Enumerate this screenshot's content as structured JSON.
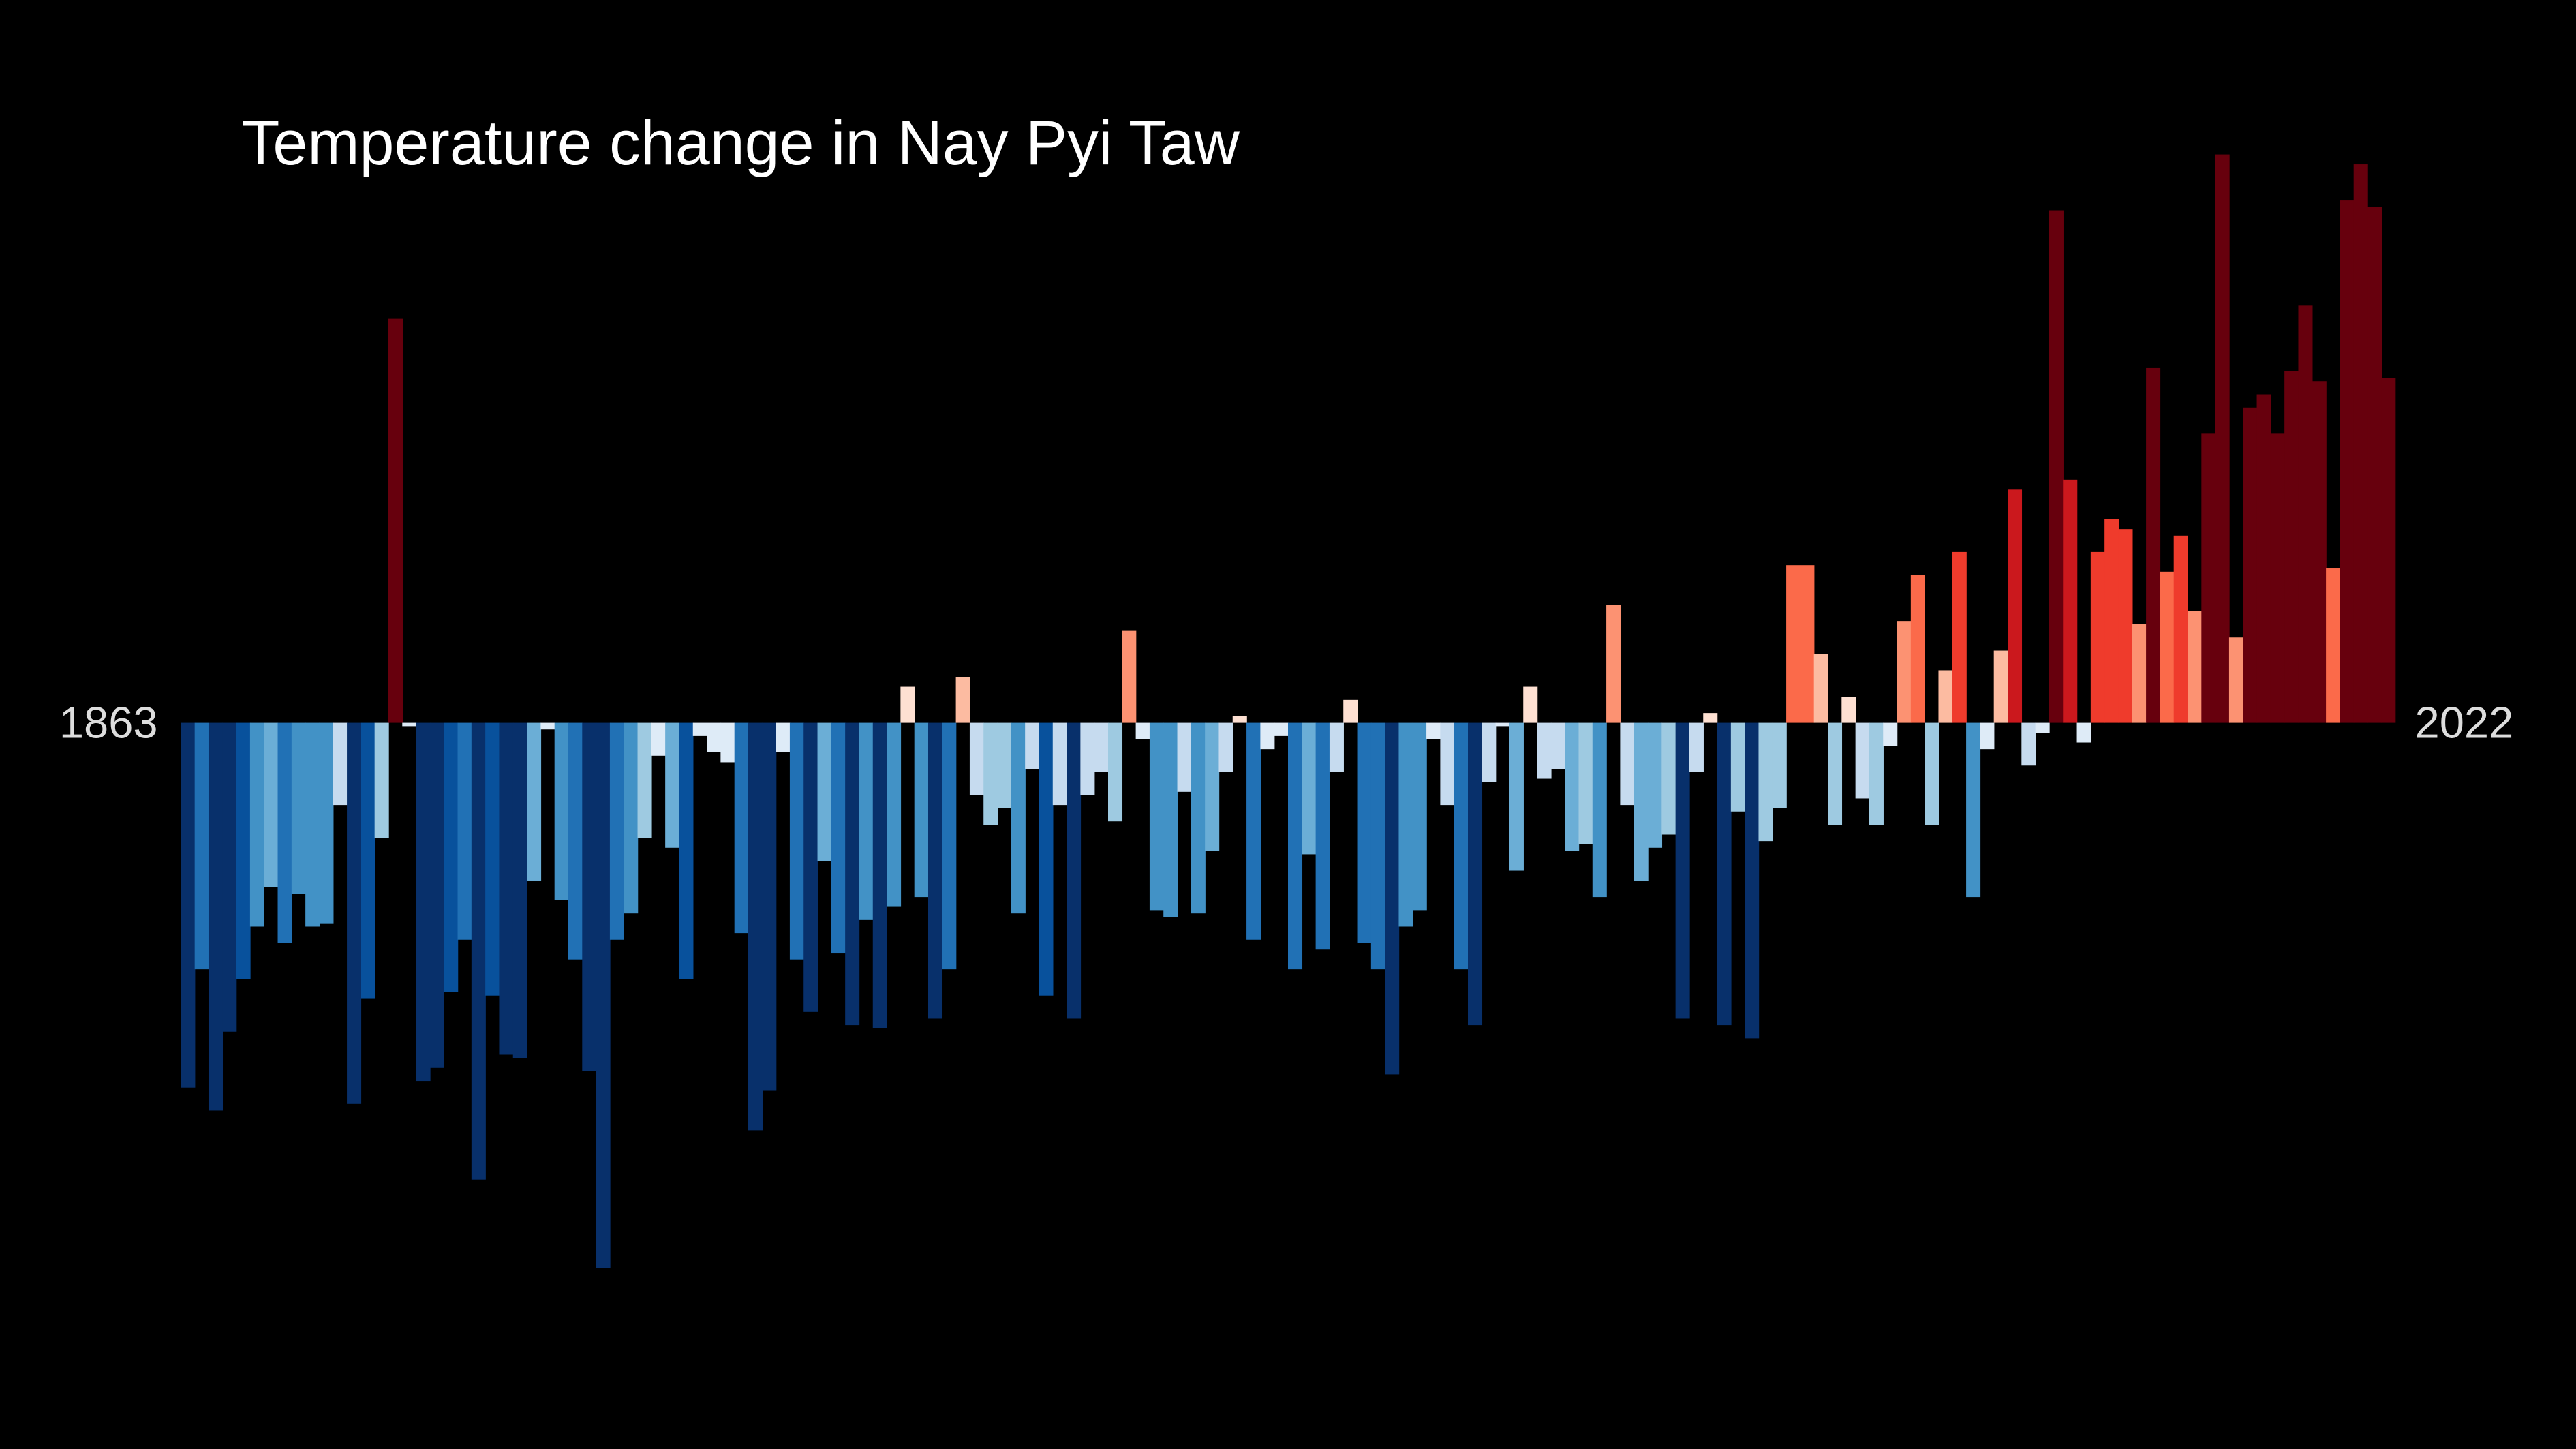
{
  "chart_data": {
    "type": "bar",
    "title": "Temperature change in Nay Pyi Taw",
    "categories": [
      "1863",
      null,
      null,
      null,
      null,
      null,
      null,
      null,
      null,
      null,
      null,
      null,
      null,
      null,
      null,
      null,
      null,
      null,
      null,
      null,
      null,
      null,
      null,
      null,
      null,
      null,
      null,
      null,
      null,
      null,
      null,
      null,
      null,
      null,
      null,
      null,
      null,
      null,
      null,
      null,
      null,
      null,
      null,
      null,
      null,
      null,
      null,
      null,
      null,
      null,
      null,
      null,
      null,
      null,
      null,
      null,
      null,
      null,
      null,
      null,
      null,
      null,
      null,
      null,
      null,
      null,
      null,
      null,
      null,
      null,
      null,
      null,
      null,
      null,
      null,
      null,
      null,
      null,
      null,
      null,
      null,
      null,
      null,
      null,
      null,
      null,
      null,
      null,
      null,
      null,
      null,
      null,
      null,
      null,
      null,
      null,
      null,
      null,
      null,
      null,
      null,
      null,
      null,
      null,
      null,
      null,
      null,
      null,
      null,
      null,
      null,
      null,
      null,
      null,
      null,
      null,
      null,
      null,
      null,
      null,
      null,
      null,
      null,
      null,
      null,
      null,
      null,
      null,
      null,
      null,
      null,
      null,
      null,
      null,
      null,
      null,
      null,
      null,
      null,
      null,
      null,
      null,
      null,
      null,
      null,
      null,
      null,
      null,
      null,
      null,
      null,
      null,
      null,
      null,
      null,
      null,
      null,
      null,
      null,
      "2022"
    ],
    "values": [
      -1.11,
      -0.75,
      -1.18,
      -0.94,
      -0.78,
      -0.62,
      -0.5,
      -0.67,
      -0.52,
      -0.62,
      -0.61,
      -0.25,
      -1.16,
      -0.84,
      -0.35,
      1.23,
      -0.01,
      -1.09,
      -1.05,
      -0.82,
      -0.66,
      -1.39,
      -0.83,
      -1.01,
      -1.02,
      -0.48,
      -0.02,
      -0.54,
      -0.72,
      -1.06,
      -1.66,
      -0.66,
      -0.58,
      -0.35,
      -0.1,
      -0.38,
      -0.78,
      -0.04,
      -0.09,
      -0.12,
      -0.64,
      -1.24,
      -1.12,
      -0.09,
      -0.72,
      -0.88,
      -0.42,
      -0.7,
      -0.92,
      -0.6,
      -0.93,
      -0.56,
      0.11,
      -0.53,
      -0.9,
      -0.75,
      0.14,
      -0.22,
      -0.31,
      -0.26,
      -0.58,
      -0.14,
      -0.83,
      -0.25,
      -0.9,
      -0.22,
      -0.15,
      -0.3,
      0.28,
      -0.05,
      -0.57,
      -0.59,
      -0.21,
      -0.58,
      -0.39,
      -0.15,
      0.02,
      -0.66,
      -0.08,
      -0.04,
      -0.75,
      -0.4,
      -0.69,
      -0.15,
      0.07,
      -0.67,
      -0.75,
      -1.07,
      -0.62,
      -0.57,
      -0.05,
      -0.25,
      -0.75,
      -0.92,
      -0.18,
      -0.01,
      -0.45,
      0.11,
      -0.17,
      -0.14,
      -0.39,
      -0.37,
      -0.53,
      0.36,
      -0.25,
      -0.48,
      -0.38,
      -0.34,
      -0.9,
      -0.15,
      0.03,
      -0.92,
      -0.27,
      -0.96,
      -0.36,
      -0.26,
      0.48,
      0.48,
      0.21,
      -0.31,
      0.08,
      -0.23,
      -0.31,
      -0.07,
      0.31,
      0.45,
      -0.31,
      0.16,
      0.52,
      -0.53,
      -0.08,
      0.22,
      0.71,
      -0.13,
      -0.03,
      1.56,
      0.74,
      -0.06,
      0.52,
      0.62,
      0.59,
      0.3,
      1.08,
      0.46,
      0.57,
      0.34,
      0.88,
      1.73,
      0.26,
      0.96,
      1.0,
      0.88,
      1.07,
      1.27,
      1.04,
      0.47,
      1.59,
      1.7,
      1.57,
      1.05
    ],
    "ylim": [
      -2.2,
      2.2
    ],
    "color_scale": {
      "domain": [
        -1.0,
        1.0
      ],
      "colors": [
        "#08306b",
        "#08519c",
        "#2171b5",
        "#4292c6",
        "#6baed6",
        "#9ecae1",
        "#c6dbef",
        "#deebf7",
        "#fee0d2",
        "#fcbba1",
        "#fc9272",
        "#fb6a4a",
        "#ef3b2c",
        "#cb181d",
        "#a50f15",
        "#67000d"
      ]
    },
    "background": "#000000"
  }
}
